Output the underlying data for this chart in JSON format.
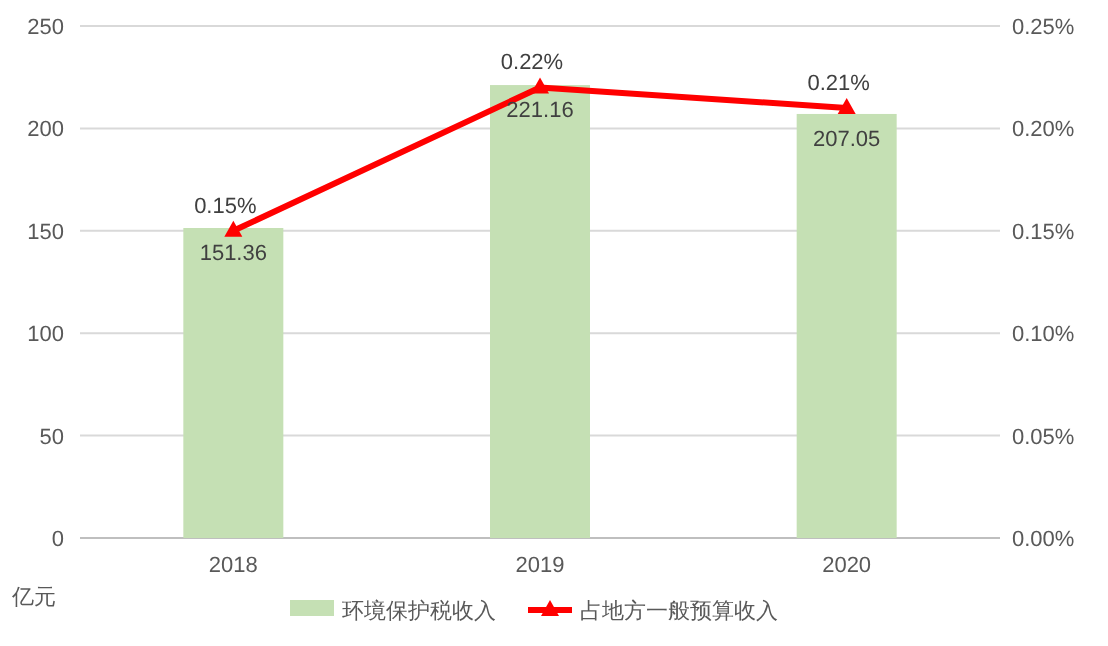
{
  "chart_data": {
    "type": "bar",
    "ylabel": "亿元",
    "categories": [
      "2018",
      "2019",
      "2020"
    ],
    "series": [
      {
        "name": "环境保护税收入",
        "color": "#c5e0b4",
        "values": [
          151.36,
          221.16,
          207.05
        ],
        "value_labels": [
          "151.36",
          "221.16",
          "207.05"
        ]
      },
      {
        "name": "占地方一般预算收入",
        "type": "line",
        "axis": "y2",
        "color": "#ff0000",
        "marker": "triangle",
        "values": [
          0.15,
          0.22,
          0.21
        ],
        "value_labels": [
          "0.15%",
          "0.22%",
          "0.21%"
        ]
      }
    ],
    "ylim": [
      0,
      250
    ],
    "yticks": [
      0,
      50,
      100,
      150,
      200,
      250
    ],
    "y2lim": [
      0,
      0.25
    ],
    "y2ticks": [
      {
        "value": 0,
        "label": "0.00%"
      },
      {
        "value": 0.05,
        "label": "0.05%"
      },
      {
        "value": 0.1,
        "label": "0.10%"
      },
      {
        "value": 0.15,
        "label": "0.15%"
      },
      {
        "value": 0.2,
        "label": "0.20%"
      },
      {
        "value": 0.25,
        "label": "0.25%"
      }
    ],
    "grid": "y",
    "legend": "bottom"
  }
}
